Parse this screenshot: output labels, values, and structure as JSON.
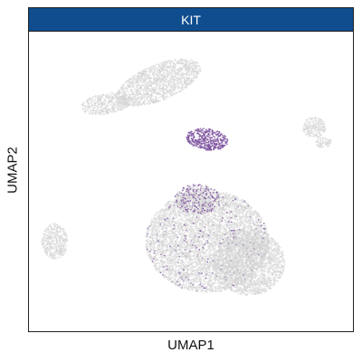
{
  "chart_data": {
    "type": "scatter",
    "title": "KIT",
    "xlabel": "UMAP1",
    "ylabel": "UMAP2",
    "xlim": [
      0,
      100
    ],
    "ylim": [
      0,
      100
    ],
    "axis_ticks": false,
    "grid": false,
    "legend": "none",
    "colors": {
      "strip": "#0f4d8f",
      "background_cells": "#d4d4d4",
      "expressing_cells": "#7b4d9e"
    },
    "clusters": [
      {
        "cx": 40,
        "cy": 83,
        "rx": 14,
        "ry": 6,
        "angle": -22,
        "expression": 0.0
      },
      {
        "cx": 24,
        "cy": 76,
        "rx": 8,
        "ry": 3.5,
        "angle": -10,
        "expression": 0.0
      },
      {
        "cx": 55,
        "cy": 64,
        "rx": 6.5,
        "ry": 3.6,
        "angle": 8,
        "expression": 0.9
      },
      {
        "cx": 88,
        "cy": 68,
        "rx": 3.5,
        "ry": 3.5,
        "angle": 0,
        "expression": 0.0
      },
      {
        "cx": 91,
        "cy": 63,
        "rx": 2.5,
        "ry": 1.8,
        "angle": 0,
        "expression": 0.0
      },
      {
        "cx": 55,
        "cy": 30,
        "rx": 19,
        "ry": 17,
        "angle": 0,
        "expression": 0.03
      },
      {
        "cx": 68,
        "cy": 23,
        "rx": 11,
        "ry": 11,
        "angle": 0,
        "expression": 0.0
      },
      {
        "cx": 52,
        "cy": 44,
        "rx": 7,
        "ry": 5,
        "angle": 0,
        "expression": 0.3
      },
      {
        "cx": 8,
        "cy": 30,
        "rx": 4,
        "ry": 6,
        "angle": 0,
        "expression": 0.0
      }
    ]
  }
}
